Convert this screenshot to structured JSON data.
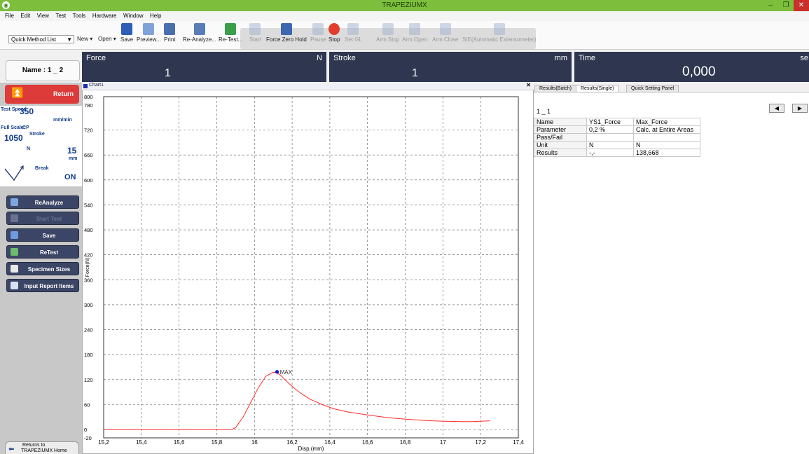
{
  "window": {
    "title": "TRAPEZIUMX",
    "app_icon": "trapezium-icon"
  },
  "menu": [
    "File",
    "Edit",
    "View",
    "Test",
    "Tools",
    "Hardware",
    "Window",
    "Help"
  ],
  "toolbar": {
    "quick_method": "Quick Method List",
    "new_label": "New",
    "open_label": "Open",
    "items": [
      {
        "label": "Save",
        "icon": "save-icon",
        "enabled": true
      },
      {
        "label": "Preview...",
        "icon": "preview-icon",
        "enabled": true
      },
      {
        "label": "Print",
        "icon": "print-icon",
        "enabled": true
      },
      {
        "label": "Re-Analyze...",
        "icon": "reanalyze-icon",
        "enabled": true
      },
      {
        "label": "Re-Test...",
        "icon": "retest-icon",
        "enabled": true
      },
      {
        "label": "Start",
        "icon": "start-icon",
        "enabled": false
      },
      {
        "label": "Force Zero Hold",
        "icon": "force-zero-hold-icon",
        "enabled": true
      },
      {
        "label": "Pause",
        "icon": "pause-icon",
        "enabled": false
      },
      {
        "label": "Stop",
        "icon": "stop-icon",
        "enabled": true
      },
      {
        "label": "Set GL",
        "icon": "set-gl-icon",
        "enabled": false
      },
      {
        "label": "Arm Stop",
        "icon": "arm-stop-icon",
        "enabled": false
      },
      {
        "label": "Arm Open",
        "icon": "arm-open-icon",
        "enabled": false
      },
      {
        "label": "Arm Close",
        "icon": "arm-close-icon",
        "enabled": false
      },
      {
        "label": "SIE(Automatic Extensometer)",
        "icon": "extensometer-icon",
        "enabled": false
      }
    ]
  },
  "meters": {
    "force": {
      "title": "Force",
      "unit": "N",
      "value": "1"
    },
    "stroke": {
      "title": "Stroke",
      "unit": "mm",
      "value": "1"
    },
    "time": {
      "title": "Time",
      "unit": "se",
      "value": "0,000"
    }
  },
  "left": {
    "name": "Name : 1 _ 2",
    "return_label": "Return",
    "test_speed_label": "Test Speed",
    "test_speed_value": "350",
    "test_speed_unit": "mm/min",
    "full_scale_label": "Full Scale:",
    "full_scale_cp": "CP",
    "full_scale_value": "1050",
    "full_scale_stroke": "Stroke",
    "full_scale_unit": "N",
    "stroke_value": "15",
    "stroke_unit": "mm",
    "break_label": "Break",
    "break_value": "ON",
    "buttons": [
      {
        "label": "ReAnalyze",
        "icon": "reanalyze-icon",
        "enabled": true
      },
      {
        "label": "Start Test",
        "icon": "start-test-icon",
        "enabled": false
      },
      {
        "label": "Save",
        "icon": "save-icon",
        "enabled": true
      },
      {
        "label": "ReTest",
        "icon": "retest-icon",
        "enabled": true
      },
      {
        "label": "Specimen Sizes",
        "icon": "specimen-sizes-icon",
        "enabled": true
      },
      {
        "label": "Input Report Items",
        "icon": "report-items-icon",
        "enabled": true
      }
    ],
    "home_label_1": "Returns to",
    "home_label_2": "TRAPEZIUMX Home"
  },
  "chart_window": {
    "title": "Chart1"
  },
  "chart_data": {
    "type": "line",
    "title": "",
    "xlabel": "Disp.(mm)",
    "ylabel": "Force(N)",
    "xlim": [
      15.2,
      17.4
    ],
    "ylim": [
      -20,
      800
    ],
    "xticks": [
      "15,2",
      "15,4",
      "15,6",
      "15,8",
      "16",
      "16,2",
      "16,4",
      "16,6",
      "16,8",
      "17",
      "17,2",
      "17,4"
    ],
    "yticks": [
      -20,
      0,
      60,
      120,
      180,
      240,
      300,
      360,
      420,
      480,
      540,
      600,
      660,
      720,
      780,
      800
    ],
    "grid": true,
    "line_color": "#ff2a2a",
    "series": [
      {
        "x": [
          15.2,
          15.88,
          15.9,
          15.94,
          15.98,
          16.02,
          16.06,
          16.1,
          16.12,
          16.14,
          16.18,
          16.22,
          16.26,
          16.3,
          16.36,
          16.42,
          16.5,
          16.6,
          16.7,
          16.8,
          16.9,
          17.0,
          17.1,
          17.15,
          17.2,
          17.25
        ],
        "y": [
          0,
          0,
          5,
          30,
          65,
          100,
          128,
          138,
          136,
          130,
          112,
          96,
          83,
          72,
          60,
          50,
          42,
          35,
          29,
          25,
          22,
          20,
          19,
          19,
          20,
          21
        ]
      }
    ],
    "annotation": {
      "label": "MAX",
      "x": 16.12,
      "y": 138.668,
      "color": "#1515c8"
    }
  },
  "right": {
    "tabs": [
      "Results(Batch)",
      "Results(Single)",
      "Quick Setting Panel"
    ],
    "active_tab": 1,
    "specimen": "1 _ 1",
    "table": [
      [
        "Name",
        "YS1_Force",
        "Max_Force"
      ],
      [
        "Parameter",
        "0,2 %",
        "Calc. at Entire Areas"
      ],
      [
        "Pass/Fail",
        "",
        ""
      ],
      [
        "Unit",
        "N",
        "N"
      ],
      [
        "Results",
        "-,-",
        "138,668"
      ]
    ]
  }
}
